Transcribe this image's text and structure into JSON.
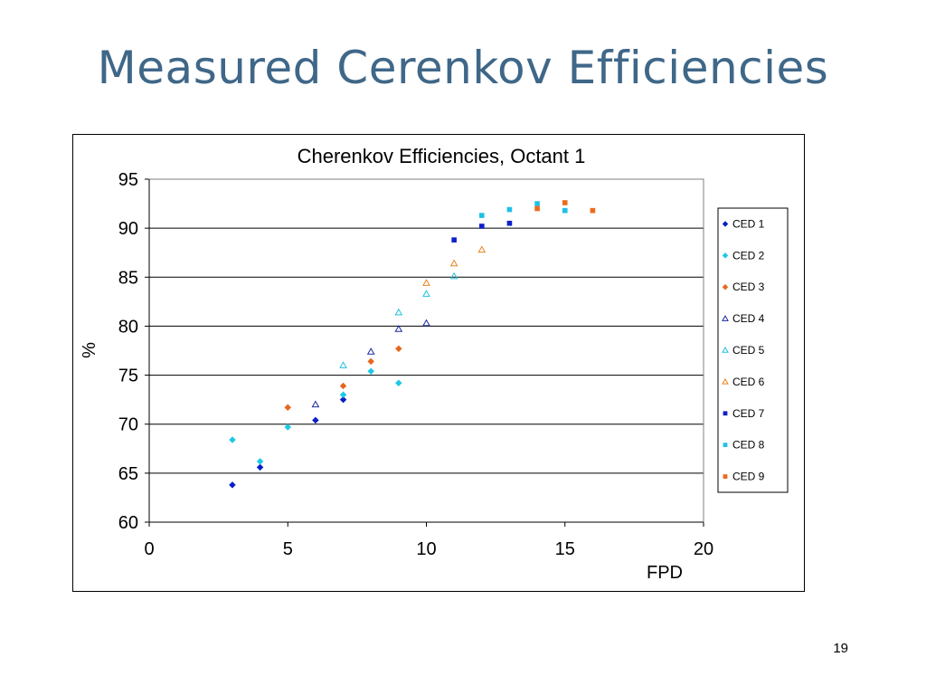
{
  "slide": {
    "title": "Measured Cerenkov Efficiencies",
    "page_number": "19"
  },
  "chart_data": {
    "type": "scatter",
    "title": "Cherenkov Efficiencies, Octant 1",
    "xlabel": "FPD",
    "ylabel": "%",
    "xlim": [
      0,
      20
    ],
    "ylim": [
      60,
      95
    ],
    "xticks": [
      0,
      5,
      10,
      15,
      20
    ],
    "yticks": [
      60,
      65,
      70,
      75,
      80,
      85,
      90,
      95
    ],
    "grid": "horizontal",
    "legend_position": "right",
    "series": [
      {
        "name": "CED 1",
        "marker": "diamond",
        "filled": true,
        "color": "#0a1fc8",
        "points": [
          [
            3,
            63.8
          ],
          [
            4,
            65.6
          ],
          [
            6,
            70.4
          ],
          [
            7,
            72.5
          ]
        ]
      },
      {
        "name": "CED 2",
        "marker": "diamond",
        "filled": true,
        "color": "#1ec8e6",
        "points": [
          [
            3,
            68.4
          ],
          [
            4,
            66.2
          ],
          [
            5,
            69.7
          ],
          [
            7,
            73.0
          ],
          [
            8,
            75.4
          ],
          [
            9,
            74.2
          ]
        ]
      },
      {
        "name": "CED 3",
        "marker": "diamond",
        "filled": true,
        "color": "#e8661e",
        "points": [
          [
            5,
            71.7
          ],
          [
            7,
            73.9
          ],
          [
            8,
            76.4
          ],
          [
            9,
            77.7
          ]
        ]
      },
      {
        "name": "CED 4",
        "marker": "triangle",
        "filled": false,
        "color": "#1a2aa0",
        "points": [
          [
            6,
            72.0
          ],
          [
            8,
            77.4
          ],
          [
            9,
            79.7
          ],
          [
            10,
            80.3
          ]
        ]
      },
      {
        "name": "CED 5",
        "marker": "triangle",
        "filled": false,
        "color": "#24c0e0",
        "points": [
          [
            7,
            76.0
          ],
          [
            9,
            81.4
          ],
          [
            10,
            83.3
          ],
          [
            11,
            85.1
          ]
        ]
      },
      {
        "name": "CED 6",
        "marker": "triangle",
        "filled": false,
        "color": "#e8841e",
        "points": [
          [
            10,
            84.4
          ],
          [
            11,
            86.4
          ],
          [
            12,
            87.8
          ]
        ]
      },
      {
        "name": "CED 7",
        "marker": "square",
        "filled": true,
        "color": "#1020c8",
        "points": [
          [
            11,
            88.8
          ],
          [
            12,
            90.2
          ],
          [
            13,
            90.5
          ]
        ]
      },
      {
        "name": "CED 8",
        "marker": "square",
        "filled": true,
        "color": "#1ec0e8",
        "points": [
          [
            12,
            91.3
          ],
          [
            13,
            91.9
          ],
          [
            14,
            92.5
          ],
          [
            15,
            91.8
          ]
        ]
      },
      {
        "name": "CED 9",
        "marker": "square",
        "filled": true,
        "color": "#ec6a1e",
        "points": [
          [
            14,
            92.0
          ],
          [
            15,
            92.6
          ],
          [
            16,
            91.8
          ]
        ]
      }
    ]
  }
}
